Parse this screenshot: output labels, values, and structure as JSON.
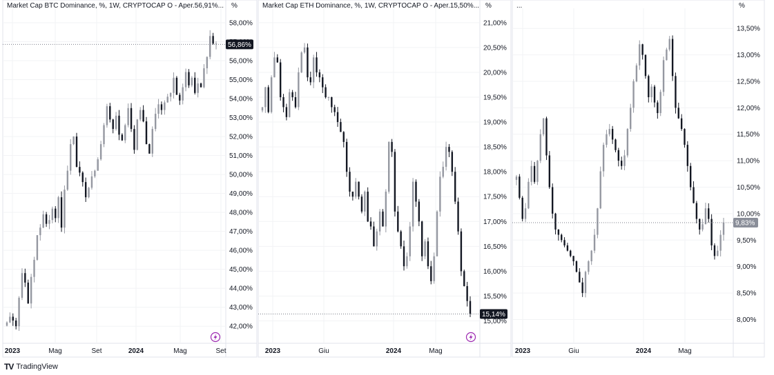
{
  "chart_data": [
    {
      "type": "candlestick",
      "title": "Market Cap BTC Dominance, %, 1W, CRYPTOCAP  O - Aper.56,91%...",
      "unit_label": "%",
      "y_ticks": [
        "42,00%",
        "43,00%",
        "44,00%",
        "45,00%",
        "46,00%",
        "47,00%",
        "48,00%",
        "49,00%",
        "50,00%",
        "51,00%",
        "52,00%",
        "53,00%",
        "54,00%",
        "55,00%",
        "56,00%",
        "57,00%",
        "58,00%"
      ],
      "ylim": [
        41.1,
        58.4
      ],
      "x_labels": [
        {
          "text": "2023",
          "bold": true
        },
        {
          "text": "Mag",
          "bold": false
        },
        {
          "text": "Set",
          "bold": false
        },
        {
          "text": "2024",
          "bold": true
        },
        {
          "text": "Mag",
          "bold": false
        },
        {
          "text": "Set",
          "bold": false
        }
      ],
      "last_value": 56.86,
      "last_value_label": "56,86%",
      "tag_color": "#131722",
      "closes": [
        42.2,
        42.5,
        42.3,
        42.0,
        43.5,
        44.8,
        44.3,
        43.2,
        44.6,
        45.5,
        46.8,
        47.2,
        47.9,
        47.4,
        47.6,
        48.2,
        47.7,
        48.8,
        47.2,
        49.2,
        50.2,
        51.6,
        52.0,
        50.4,
        50.1,
        49.6,
        48.8,
        49.3,
        49.9,
        50.2,
        50.8,
        51.6,
        52.6,
        53.6,
        52.9,
        52.4,
        53.1,
        52.1,
        51.8,
        52.6,
        53.5,
        52.4,
        51.3,
        52.9,
        53.4,
        52.8,
        51.6,
        51.1,
        52.4,
        53.2,
        53.7,
        53.4,
        53.8,
        54.1,
        54.3,
        55.1,
        54.2,
        53.9,
        54.6,
        55.4,
        54.7,
        55.1,
        54.3,
        54.8,
        54.6,
        55.6,
        56.2,
        57.3,
        56.9,
        56.9
      ]
    },
    {
      "type": "candlestick",
      "title": "Market Cap ETH Dominance, %, 1W, CRYPTOCAP  O - Aper.15,50%...",
      "unit_label": "%",
      "y_ticks": [
        "15,00%",
        "15,50%",
        "16,00%",
        "16,50%",
        "17,00%",
        "17,50%",
        "18,00%",
        "18,50%",
        "19,00%",
        "19,50%",
        "20,00%",
        "20,50%",
        "21,00%"
      ],
      "ylim": [
        14.55,
        21.15
      ],
      "x_labels": [
        {
          "text": "2023",
          "bold": true
        },
        {
          "text": "Giu",
          "bold": false
        },
        {
          "text": "2024",
          "bold": true
        },
        {
          "text": "Mag",
          "bold": false
        }
      ],
      "last_value": 15.14,
      "last_value_label": "15,14%",
      "tag_color": "#131722",
      "closes": [
        19.3,
        19.7,
        19.2,
        19.9,
        20.3,
        20.2,
        19.5,
        19.3,
        19.1,
        19.6,
        19.5,
        19.3,
        20.0,
        20.4,
        20.5,
        19.9,
        19.8,
        20.3,
        20.0,
        19.9,
        19.7,
        19.5,
        19.5,
        19.3,
        19.2,
        19.0,
        18.8,
        18.6,
        18.0,
        17.6,
        17.5,
        17.8,
        17.5,
        17.2,
        17.6,
        17.0,
        16.9,
        16.5,
        16.8,
        17.2,
        16.9,
        17.6,
        18.6,
        18.4,
        17.2,
        16.8,
        16.5,
        16.1,
        16.3,
        16.9,
        17.8,
        17.4,
        17.0,
        16.3,
        16.6,
        16.1,
        15.8,
        16.3,
        17.2,
        17.9,
        18.1,
        18.5,
        18.4,
        18.0,
        17.4,
        16.8,
        16.0,
        15.7,
        15.4,
        15.14
      ]
    },
    {
      "type": "candlestick",
      "title": "...",
      "unit_label": "%",
      "y_ticks": [
        "8,00%",
        "8,50%",
        "9,00%",
        "9,50%",
        "10,00%",
        "10,50%",
        "11,00%",
        "11,50%",
        "12,00%",
        "12,50%",
        "13,00%",
        "13,50%"
      ],
      "ylim": [
        7.55,
        13.75
      ],
      "x_labels": [
        {
          "text": "2023",
          "bold": true
        },
        {
          "text": "Giu",
          "bold": false
        },
        {
          "text": "2024",
          "bold": true
        },
        {
          "text": "Mag",
          "bold": false
        }
      ],
      "last_value": 9.83,
      "last_value_label": "9,83%",
      "tag_color": "#8a8e99",
      "closes": [
        10.7,
        10.3,
        9.9,
        10.1,
        10.6,
        10.9,
        10.6,
        11.0,
        11.5,
        11.8,
        11.1,
        10.5,
        10.0,
        9.7,
        9.6,
        9.5,
        9.4,
        9.3,
        9.2,
        9.1,
        8.9,
        8.7,
        8.5,
        8.9,
        9.1,
        9.3,
        9.6,
        10.1,
        10.8,
        11.3,
        11.5,
        11.6,
        11.4,
        11.2,
        11.0,
        10.9,
        11.1,
        11.6,
        12.0,
        12.5,
        12.8,
        13.2,
        13.0,
        12.6,
        12.2,
        12.4,
        12.1,
        11.9,
        12.3,
        12.9,
        13.1,
        13.3,
        12.6,
        12.0,
        11.8,
        11.6,
        11.3,
        10.9,
        10.5,
        10.2,
        9.9,
        9.7,
        9.8,
        10.1,
        9.9,
        9.4,
        9.2,
        9.3,
        9.6,
        9.83
      ]
    }
  ],
  "footer": {
    "brand_name": "TradingView",
    "brand_logo": "TV"
  },
  "colors": {
    "up": "#9598a1",
    "down": "#131722",
    "grid": "#f2f3f5",
    "border": "#e0e3eb",
    "icon": "#9c27b0"
  },
  "icons": [
    "lightning-icon",
    "tradingview-logo-icon"
  ]
}
